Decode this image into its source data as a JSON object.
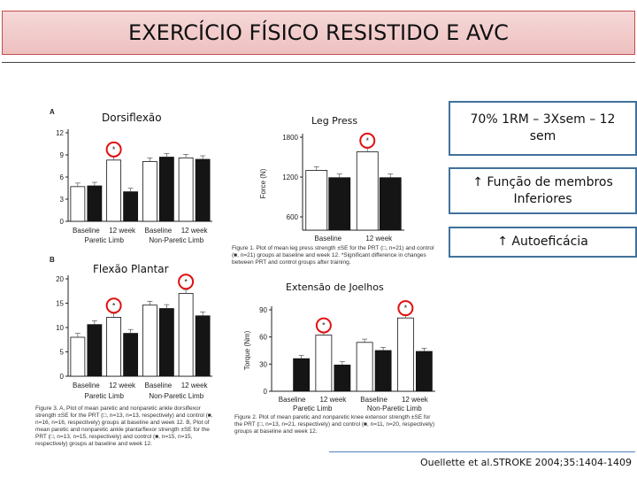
{
  "title": "EXERCÍCIO FÍSICO RESISTIDO E AVC",
  "labels": {
    "dorsiflexao": "Dorsiflexão",
    "leg_press": "Leg Press",
    "flexao_plantar": "Flexão Plantar",
    "extensao_joelhos": "Extensão  de Joelhos"
  },
  "boxes": {
    "protocol": "70% 1RM – 3Xsem – 12 sem",
    "funcao": "↑ Função de membros Inferiores",
    "autoeficacia": "↑ Autoeficácia"
  },
  "citation": "Ouellette et al.STROKE 2004;35:1404-1409",
  "panel_letters": {
    "a": "A",
    "b": "B"
  },
  "captions": {
    "fig1": "Figure 1. Plot of mean leg press strength ±SE for the PRT (□, n=21) and control (■, n=21) groups at baseline and week 12. *Significant difference in changes between PRT and control groups after training.",
    "fig2": "Figure 2. Plot of mean paretic and nonparetic knee extensor strength ±SE for the PRT (□, n=13, n=21, respectively) and control (■, n=11, n=20, respectively) groups at baseline and week 12.",
    "fig3": "Figure 3. A, Plot of mean paretic and nonparetic ankle dorsiflexor strength ±SE for the PRT (□, n=13, n=13, respectively) and control (■, n=16, n=16, respectively) groups at baseline and week 12. B, Plot of mean paretic and nonparetic ankle plantarflexor strength ±SE for the PRT (□, n=13, n=15, respectively) and control (■, n=15, n=15, respectively) groups at baseline and week 12."
  },
  "colors": {
    "prt": "#ffffff",
    "control": "#151515",
    "highlight": "#e01010"
  },
  "chart_data": [
    {
      "id": "dorsi",
      "type": "bar",
      "categories": [
        "Baseline",
        "12 week",
        "Baseline",
        "12 week"
      ],
      "groups": [
        "Paretic Limb",
        "Non-Paretic Limb"
      ],
      "series": [
        {
          "values": [
            4.7,
            8.3,
            8.1,
            8.6
          ]
        },
        {
          "values": [
            4.8,
            4.0,
            8.7,
            8.4
          ]
        }
      ],
      "yticks": [
        0,
        3,
        6,
        9,
        12
      ],
      "ylim": [
        0,
        12
      ],
      "ylabel": "",
      "significant": [
        1
      ]
    },
    {
      "id": "legpress",
      "type": "bar",
      "categories": [
        "Baseline",
        "12 week"
      ],
      "series": [
        {
          "values": [
            1300,
            1580
          ]
        },
        {
          "values": [
            1190,
            1190
          ]
        }
      ],
      "yticks": [
        600,
        1200,
        1800
      ],
      "ylim": [
        400,
        1800
      ],
      "ylabel": "Force (N)",
      "significant": [
        1
      ]
    },
    {
      "id": "plantar",
      "type": "bar",
      "categories": [
        "Baseline",
        "12 week",
        "Baseline",
        "12 week"
      ],
      "groups": [
        "Paretic Limb",
        "Non-Paretic Limb"
      ],
      "series": [
        {
          "values": [
            8.0,
            12.1,
            14.6,
            17.0
          ]
        },
        {
          "values": [
            10.6,
            8.8,
            13.9,
            12.4
          ]
        }
      ],
      "yticks": [
        0,
        5,
        10,
        15,
        20
      ],
      "ylim": [
        0,
        20
      ],
      "ylabel": "",
      "significant": [
        1,
        3
      ]
    },
    {
      "id": "knee",
      "type": "bar",
      "categories": [
        "Baseline",
        "12 week",
        "Baseline",
        "12 week"
      ],
      "groups": [
        "Paretic Limb",
        "Non-Paretic Limb"
      ],
      "series": [
        {
          "values": [
            0,
            62,
            54,
            81
          ]
        },
        {
          "values": [
            36,
            29,
            45,
            44
          ]
        }
      ],
      "yticks": [
        0,
        30,
        60,
        90
      ],
      "ylim": [
        0,
        90
      ],
      "ylabel": "Torque (Nm)",
      "significant": [
        1,
        3
      ]
    }
  ]
}
